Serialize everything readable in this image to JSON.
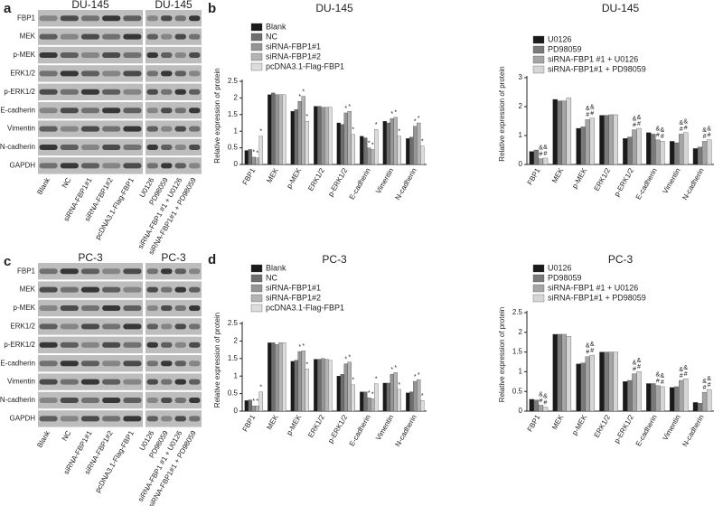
{
  "blots": [
    {
      "label": "a",
      "title_left": "DU-145",
      "title_right": "DU-145",
      "proteins": [
        "FBP1",
        "MEK",
        "p-MEK",
        "ERK1/2",
        "p-ERK1/2",
        "E-cadherin",
        "Vimentin",
        "N-cadherin",
        "GAPDH"
      ],
      "lanes_left": [
        "Blank",
        "NC",
        "siRNA-FBP1#1",
        "siRNA-FBP1#2",
        "pcDNA3.1-Flag-FBP1"
      ],
      "lanes_right": [
        "U0126",
        "PD98059",
        "siRNA-FBP1 #1 + U0126",
        "siRNA-FBP1#1 + PD98059"
      ]
    },
    {
      "label": "c",
      "title_left": "PC-3",
      "title_right": "PC-3",
      "proteins": [
        "FBP1",
        "MEK",
        "p-MEK",
        "ERK1/2",
        "p-ERK1/2",
        "E-cadherin",
        "Vimentin",
        "N-cadherin",
        "GAPDH"
      ],
      "lanes_left": [
        "Blank",
        "NC",
        "siRNA-FBP1#1",
        "siRNA-FBP1#2",
        "pcDNA3.1-Flag-FBP1"
      ],
      "lanes_right": [
        "U0126",
        "PD98059",
        "siRNA-FBP1 #1 + U0126",
        "siRNA-FBP1#1 + PD98059"
      ]
    }
  ],
  "chart_data": [
    {
      "type": "bar",
      "panel": "b",
      "title": "DU-145",
      "ylabel": "Relative expression of protein",
      "categories": [
        "FBP1",
        "MEK",
        "p-MEK",
        "ERK1/2",
        "p-ERK1/2",
        "E-cadherin",
        "Vimentin",
        "N-cadherin"
      ],
      "ylim": [
        0,
        2.5
      ],
      "yticks": [
        0,
        0.5,
        1.0,
        1.5,
        2.0,
        2.5
      ],
      "series": [
        {
          "name": "Blank",
          "color": "#1a1a1a",
          "values": [
            0.42,
            2.1,
            1.6,
            1.75,
            1.25,
            0.85,
            1.3,
            0.78
          ],
          "annotations": [
            null,
            null,
            null,
            null,
            null,
            null,
            null,
            null
          ]
        },
        {
          "name": "NC",
          "color": "#6e6e6e",
          "values": [
            0.45,
            2.15,
            1.65,
            1.75,
            1.2,
            0.8,
            1.25,
            0.82
          ],
          "annotations": [
            null,
            null,
            null,
            null,
            null,
            null,
            null,
            null
          ]
        },
        {
          "name": "siRNA-FBP1#1",
          "color": "#959595",
          "values": [
            0.22,
            2.1,
            1.9,
            1.72,
            1.55,
            0.5,
            1.38,
            1.15
          ],
          "annotations": [
            [
              "*"
            ],
            null,
            [
              "*"
            ],
            null,
            [
              "*"
            ],
            [
              "*"
            ],
            [
              "*"
            ],
            [
              "*"
            ]
          ]
        },
        {
          "name": "siRNA-FBP1#2",
          "color": "#b4b4b4",
          "values": [
            0.2,
            2.1,
            2.05,
            1.72,
            1.6,
            0.45,
            1.42,
            1.25
          ],
          "annotations": [
            [
              "*"
            ],
            null,
            [
              "*"
            ],
            null,
            [
              "*"
            ],
            [
              "*"
            ],
            [
              "*"
            ],
            [
              "*"
            ]
          ]
        },
        {
          "name": "pcDNA3.1-Flag-FBP1",
          "color": "#dcdcdc",
          "values": [
            0.85,
            2.1,
            1.3,
            1.72,
            0.9,
            1.05,
            0.85,
            0.55
          ],
          "annotations": [
            [
              "*"
            ],
            null,
            [
              "*"
            ],
            null,
            [
              "*"
            ],
            [
              "*"
            ],
            [
              "*"
            ],
            [
              "*"
            ]
          ]
        }
      ]
    },
    {
      "type": "bar",
      "title": "DU-145",
      "ylabel": "Relative expression of protein",
      "categories": [
        "FBP1",
        "MEK",
        "p-MEK",
        "ERK1/2",
        "p-ERK1/2",
        "E-cadherin",
        "Vimentin",
        "N-cadherin"
      ],
      "ylim": [
        0,
        3
      ],
      "yticks": [
        0,
        1,
        2,
        3
      ],
      "series": [
        {
          "name": "U0126",
          "color": "#1a1a1a",
          "values": [
            0.45,
            2.25,
            1.25,
            1.7,
            0.9,
            1.1,
            0.8,
            0.55
          ],
          "annotations": [
            null,
            null,
            null,
            null,
            null,
            null,
            null,
            null
          ]
        },
        {
          "name": "PD98059",
          "color": "#7a7a7a",
          "values": [
            0.5,
            2.2,
            1.3,
            1.7,
            0.95,
            1.05,
            0.75,
            0.6
          ],
          "annotations": [
            null,
            null,
            null,
            null,
            null,
            null,
            null,
            null
          ]
        },
        {
          "name": "siRNA-FBP1 #1 + U0126",
          "color": "#a5a5a5",
          "values": [
            0.2,
            2.2,
            1.55,
            1.72,
            1.2,
            0.85,
            1.05,
            0.8
          ],
          "annotations": [
            [
              "&",
              "#"
            ],
            null,
            [
              "&",
              "#"
            ],
            null,
            [
              "&",
              "#"
            ],
            [
              "&",
              "#"
            ],
            [
              "&",
              "#"
            ],
            [
              "&",
              "#"
            ]
          ]
        },
        {
          "name": "siRNA-FBP1#1 + PD98059",
          "color": "#d6d6d6",
          "values": [
            0.22,
            2.3,
            1.6,
            1.72,
            1.25,
            0.8,
            1.1,
            0.85
          ],
          "annotations": [
            [
              "&",
              "#"
            ],
            null,
            [
              "&",
              "#"
            ],
            null,
            [
              "&",
              "#"
            ],
            [
              "&",
              "#"
            ],
            [
              "&",
              "#"
            ],
            [
              "&",
              "#"
            ]
          ]
        }
      ]
    },
    {
      "type": "bar",
      "panel": "d",
      "title": "PC-3",
      "ylabel": "Relative expression of protein",
      "categories": [
        "FBP1",
        "MEK",
        "p-MEK",
        "ERK1/2",
        "p-ERK1/2",
        "E-cadherin",
        "Vimentin",
        "N-cadherin"
      ],
      "ylim": [
        0,
        2.5
      ],
      "yticks": [
        0,
        0.5,
        1.0,
        1.5,
        2.0,
        2.5
      ],
      "series": [
        {
          "name": "Blank",
          "color": "#1a1a1a",
          "values": [
            0.3,
            1.95,
            1.42,
            1.48,
            1.0,
            0.55,
            0.8,
            0.52
          ],
          "annotations": [
            null,
            null,
            null,
            null,
            null,
            null,
            null,
            null
          ]
        },
        {
          "name": "NC",
          "color": "#6e6e6e",
          "values": [
            0.32,
            1.95,
            1.45,
            1.48,
            1.05,
            0.55,
            0.8,
            0.55
          ],
          "annotations": [
            null,
            null,
            null,
            null,
            null,
            null,
            null,
            null
          ]
        },
        {
          "name": "siRNA-FBP1#1",
          "color": "#959595",
          "values": [
            0.15,
            1.9,
            1.7,
            1.5,
            1.35,
            0.38,
            1.05,
            0.85
          ],
          "annotations": [
            [
              "*"
            ],
            null,
            [
              "*"
            ],
            null,
            [
              "*"
            ],
            [
              "*"
            ],
            [
              "*"
            ],
            [
              "*"
            ]
          ]
        },
        {
          "name": "siRNA-FBP1#2",
          "color": "#b4b4b4",
          "values": [
            0.15,
            1.95,
            1.72,
            1.48,
            1.4,
            0.35,
            1.1,
            0.9
          ],
          "annotations": [
            [
              "*"
            ],
            null,
            [
              "*"
            ],
            null,
            [
              "*"
            ],
            [
              "*"
            ],
            [
              "*"
            ],
            [
              "*"
            ]
          ]
        },
        {
          "name": "pcDNA3.1-Flag-FBP1",
          "color": "#dcdcdc",
          "values": [
            0.55,
            1.95,
            1.2,
            1.45,
            0.75,
            0.78,
            0.62,
            0.3
          ],
          "annotations": [
            [
              "*"
            ],
            null,
            [
              "*"
            ],
            null,
            [
              "*"
            ],
            [
              "*"
            ],
            [
              "*"
            ],
            [
              "*"
            ]
          ]
        }
      ]
    },
    {
      "type": "bar",
      "title": "PC-3",
      "ylabel": "Relative expression of protein",
      "categories": [
        "FBP1",
        "MEK",
        "p-MEK",
        "ERK1/2",
        "p-ERK1/2",
        "E-cadherin",
        "Vimentin",
        "N-cadherin"
      ],
      "ylim": [
        0,
        2.5
      ],
      "yticks": [
        0,
        0.5,
        1.0,
        1.5,
        2.0,
        2.5
      ],
      "series": [
        {
          "name": "U0126",
          "color": "#1a1a1a",
          "values": [
            0.3,
            1.95,
            1.2,
            1.5,
            0.75,
            0.7,
            0.6,
            0.22
          ],
          "annotations": [
            null,
            null,
            null,
            null,
            null,
            null,
            null,
            null
          ]
        },
        {
          "name": "PD98059",
          "color": "#7a7a7a",
          "values": [
            0.28,
            1.95,
            1.22,
            1.5,
            0.78,
            0.7,
            0.62,
            0.2
          ],
          "annotations": [
            null,
            null,
            null,
            null,
            null,
            null,
            null,
            null
          ]
        },
        {
          "name": "siRNA-FBP1 #1 + U0126",
          "color": "#a5a5a5",
          "values": [
            0.15,
            1.95,
            1.38,
            1.5,
            0.95,
            0.65,
            0.78,
            0.48
          ],
          "annotations": [
            [
              "&",
              "#"
            ],
            null,
            [
              "&",
              "#"
            ],
            null,
            [
              "&",
              "#"
            ],
            [
              "&",
              "#"
            ],
            [
              "&",
              "#"
            ],
            [
              "&",
              "#"
            ]
          ]
        },
        {
          "name": "siRNA-FBP1#1 + PD98059",
          "color": "#d6d6d6",
          "values": [
            0.1,
            1.9,
            1.42,
            1.5,
            1.0,
            0.62,
            0.82,
            0.55
          ],
          "annotations": [
            [
              "&",
              "#"
            ],
            null,
            [
              "&",
              "#"
            ],
            null,
            [
              "&",
              "#"
            ],
            [
              "&",
              "#"
            ],
            [
              "&",
              "#"
            ],
            [
              "&",
              "#"
            ]
          ]
        }
      ]
    }
  ]
}
